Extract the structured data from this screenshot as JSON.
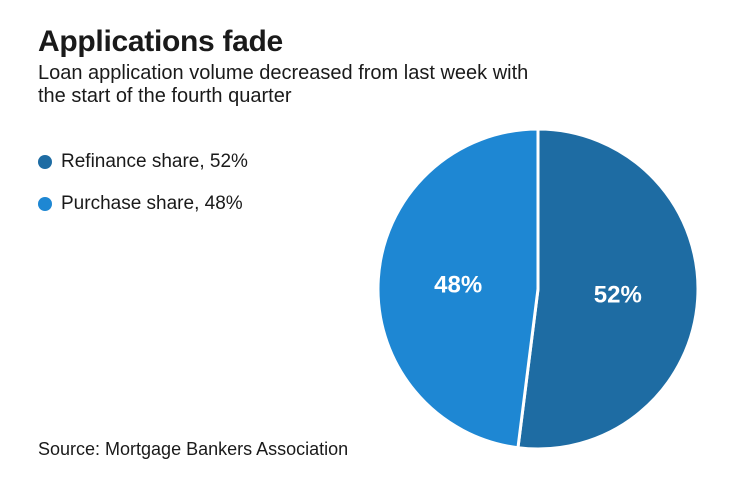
{
  "chart_data": {
    "type": "pie",
    "title": "Applications fade",
    "subtitle": "Loan application volume decreased from last week with the start of the fourth quarter",
    "source": "Source: Mortgage Bankers Association",
    "legend_position": "left",
    "start_angle_deg": 0,
    "direction": "clockwise",
    "labels_inside": true,
    "label_color": "#ffffff",
    "text_color": "#1a1a1a",
    "background_color": "#ffffff",
    "slices": [
      {
        "label": "Refinance share",
        "value_pct": 52,
        "data_label": "52%",
        "legend_label": "Refinance share, 52%",
        "color": "#1e6ca3"
      },
      {
        "label": "Purchase share",
        "value_pct": 48,
        "data_label": "48%",
        "legend_label": "Purchase share, 48%",
        "color": "#1e87d3"
      }
    ]
  }
}
